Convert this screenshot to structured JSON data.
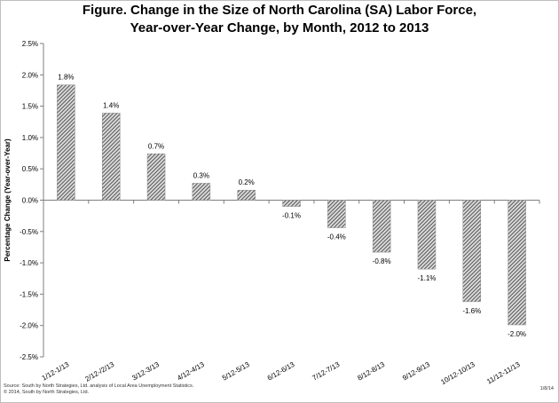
{
  "chart_data": {
    "type": "bar",
    "title_line1": "Figure. Change in the Size of North Carolina (SA) Labor Force,",
    "title_line2": "Year-over-Year Change, by Month, 2012 to 2013",
    "ylabel": "Percentage Change (Year-over-Year)",
    "xlabel": "",
    "ylim": [
      -2.5,
      2.5
    ],
    "yticks": [
      2.5,
      2.0,
      1.5,
      1.0,
      0.5,
      0.0,
      -0.5,
      -1.0,
      -1.5,
      -2.0,
      -2.5
    ],
    "ytick_labels": [
      "2.5%",
      "2.0%",
      "1.5%",
      "1.0%",
      "0.5%",
      "0.0%",
      "-0.5%",
      "-1.0%",
      "-1.5%",
      "-2.0%",
      "-2.5%"
    ],
    "categories": [
      "1/12-1/13",
      "2/12-/2/13",
      "3/12-3/13",
      "4/12-4/13",
      "5/12-5/13",
      "6/12-6/13",
      "7/12-7/13",
      "8/12-8/13",
      "9/12-9/13",
      "10/12-10/13",
      "11/12-11/13"
    ],
    "values": [
      1.84,
      1.39,
      0.74,
      0.27,
      0.16,
      -0.1,
      -0.44,
      -0.83,
      -1.1,
      -1.62,
      -1.99
    ],
    "data_labels": [
      "1.8%",
      "1.4%",
      "0.7%",
      "0.3%",
      "0.2%",
      "-0.1%",
      "-0.4%",
      "-0.8%",
      "-1.1%",
      "-1.6%",
      "-2.0%"
    ],
    "grid": false,
    "legend": "none",
    "bar_fill": "hatched gray",
    "colors": {
      "bar_dark": "#555555",
      "bar_light": "#d9d9d9",
      "axis": "#7f7f7f"
    }
  },
  "footer": {
    "source": "Source: South by North Strategies, Ltd. analysis of Local Area Unemployment Statistics.",
    "copyright": "© 2014, South by North Strategies, Ltd.",
    "date": "1/8/14"
  }
}
